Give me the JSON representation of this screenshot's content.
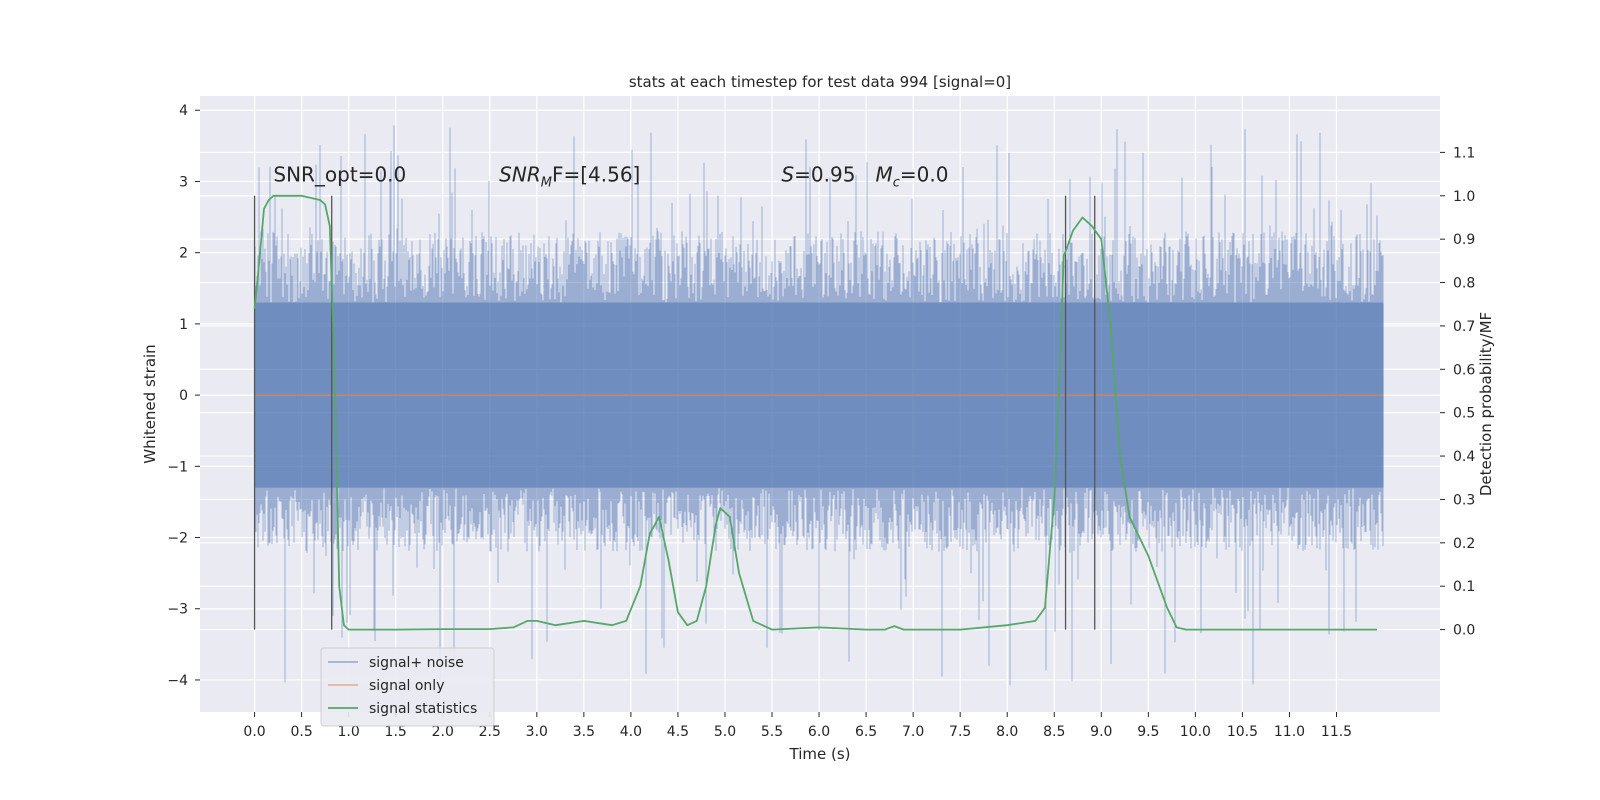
{
  "chart_data": {
    "type": "line",
    "title": "stats at each timestep for test data 994 [signal=0]",
    "xlabel": "Time (s)",
    "ylabel": "Whitened strain",
    "y2label": "Detection probability/MF",
    "xlim": [
      -0.58,
      12.6
    ],
    "ylim": [
      -4.45,
      4.2
    ],
    "y2lim": [
      -0.19,
      1.23
    ],
    "xticks": [
      "0.0",
      "0.5",
      "1.0",
      "1.5",
      "2.0",
      "2.5",
      "3.0",
      "3.5",
      "4.0",
      "4.5",
      "5.0",
      "5.5",
      "6.0",
      "6.5",
      "7.0",
      "7.5",
      "8.0",
      "8.5",
      "9.0",
      "9.5",
      "10.0",
      "10.5",
      "11.0",
      "11.5"
    ],
    "yticks": [
      "4",
      "3",
      "2",
      "1",
      "0",
      "−1",
      "−2",
      "−3",
      "−4"
    ],
    "y2ticks": [
      "1.1",
      "1.0",
      "0.9",
      "0.8",
      "0.7",
      "0.6",
      "0.5",
      "0.4",
      "0.3",
      "0.2",
      "0.1",
      "0.0"
    ],
    "grid": true,
    "legend_position": "lower-left",
    "annotations": [
      {
        "text": "SNR_opt=0.0",
        "x": 0.2,
        "y": 3.0
      },
      {
        "text": "SNR",
        "sub": "M",
        "rest": "F=[4.56]",
        "x": 2.6,
        "y": 3.0
      },
      {
        "text": "S",
        "rest": "=0.95",
        "x": 5.6,
        "y": 3.0
      },
      {
        "text": "M",
        "sub": "c",
        "rest": "=0.0",
        "x": 6.6,
        "y": 3.0
      }
    ],
    "vertical_markers_x": [
      0.0,
      0.82,
      8.62,
      8.93
    ],
    "series": [
      {
        "name": "signal+ noise",
        "color": "#4c72b0",
        "kind": "noise",
        "t_range": [
          0.0,
          12.0
        ],
        "core_amplitude": 1.3,
        "envelope": {
          "upper_typical": 2.3,
          "upper_max": 3.8,
          "lower_typical": -2.2,
          "lower_min": -4.1
        }
      },
      {
        "name": "signal only",
        "color": "#dd8452",
        "x": [
          0.0,
          12.0
        ],
        "y": [
          0.0,
          0.0
        ]
      },
      {
        "name": "signal statistics",
        "color": "#55a868",
        "axis": "right",
        "x": [
          0.0,
          0.05,
          0.1,
          0.15,
          0.2,
          0.3,
          0.5,
          0.7,
          0.75,
          0.8,
          0.85,
          0.9,
          0.95,
          1.0,
          1.1,
          1.5,
          2.0,
          2.5,
          2.75,
          2.9,
          3.0,
          3.2,
          3.5,
          3.8,
          3.95,
          4.1,
          4.2,
          4.3,
          4.4,
          4.5,
          4.6,
          4.7,
          4.8,
          4.9,
          4.95,
          5.05,
          5.15,
          5.3,
          5.5,
          6.0,
          6.5,
          6.7,
          6.8,
          6.9,
          7.0,
          7.5,
          8.0,
          8.3,
          8.4,
          8.5,
          8.55,
          8.6,
          8.7,
          8.8,
          8.9,
          9.0,
          9.1,
          9.2,
          9.3,
          9.5,
          9.7,
          9.8,
          9.9,
          10.5,
          11.0,
          11.5,
          11.93
        ],
        "y": [
          0.74,
          0.85,
          0.97,
          0.99,
          1.0,
          1.0,
          1.0,
          0.99,
          0.98,
          0.93,
          0.6,
          0.1,
          0.01,
          0.0,
          0.0,
          0.0,
          0.001,
          0.001,
          0.005,
          0.02,
          0.02,
          0.01,
          0.02,
          0.01,
          0.02,
          0.1,
          0.22,
          0.26,
          0.16,
          0.04,
          0.01,
          0.02,
          0.1,
          0.24,
          0.28,
          0.26,
          0.13,
          0.02,
          0.0,
          0.005,
          0.0,
          0.0,
          0.008,
          0.0,
          0.0,
          0.0,
          0.01,
          0.02,
          0.05,
          0.3,
          0.55,
          0.86,
          0.92,
          0.95,
          0.93,
          0.9,
          0.7,
          0.4,
          0.26,
          0.17,
          0.05,
          0.005,
          0.0,
          0.0,
          0.0,
          0.0,
          0.0
        ]
      }
    ]
  }
}
